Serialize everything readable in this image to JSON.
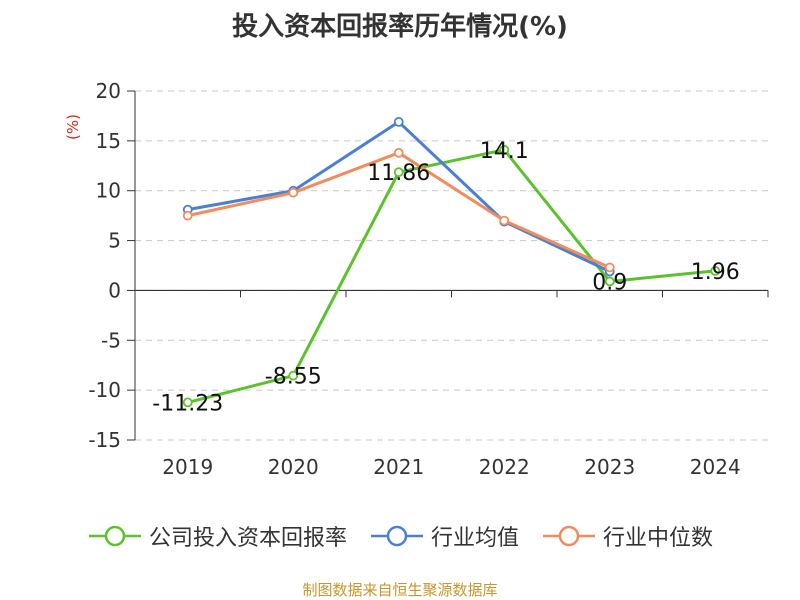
{
  "chart_data": {
    "type": "line",
    "title": "投入资本回报率历年情况(%)",
    "ylabel": "(%)",
    "xlabel": "",
    "categories": [
      "2019",
      "2020",
      "2021",
      "2022",
      "2023",
      "2024"
    ],
    "ylim": [
      -15,
      20
    ],
    "yticks": [
      -15,
      -10,
      -5,
      0,
      5,
      10,
      15,
      20
    ],
    "grid": true,
    "legend_position": "bottom",
    "series": [
      {
        "name": "公司投入资本回报率",
        "values": [
          -11.23,
          -8.55,
          11.86,
          14.1,
          0.9,
          1.96
        ],
        "labels": [
          "-11.23",
          "-8.55",
          "11.86",
          "14.1",
          "0.9",
          "1.96"
        ],
        "color": "#5cc22b"
      },
      {
        "name": "行业均值",
        "values": [
          8.1,
          10.0,
          16.9,
          6.9,
          1.9,
          null
        ],
        "color": "#4a7fd8"
      },
      {
        "name": "行业中位数",
        "values": [
          7.5,
          9.8,
          13.8,
          7.0,
          2.3,
          null
        ],
        "color": "#f28c5a"
      }
    ],
    "source": "制图数据来自恒生聚源数据库"
  }
}
